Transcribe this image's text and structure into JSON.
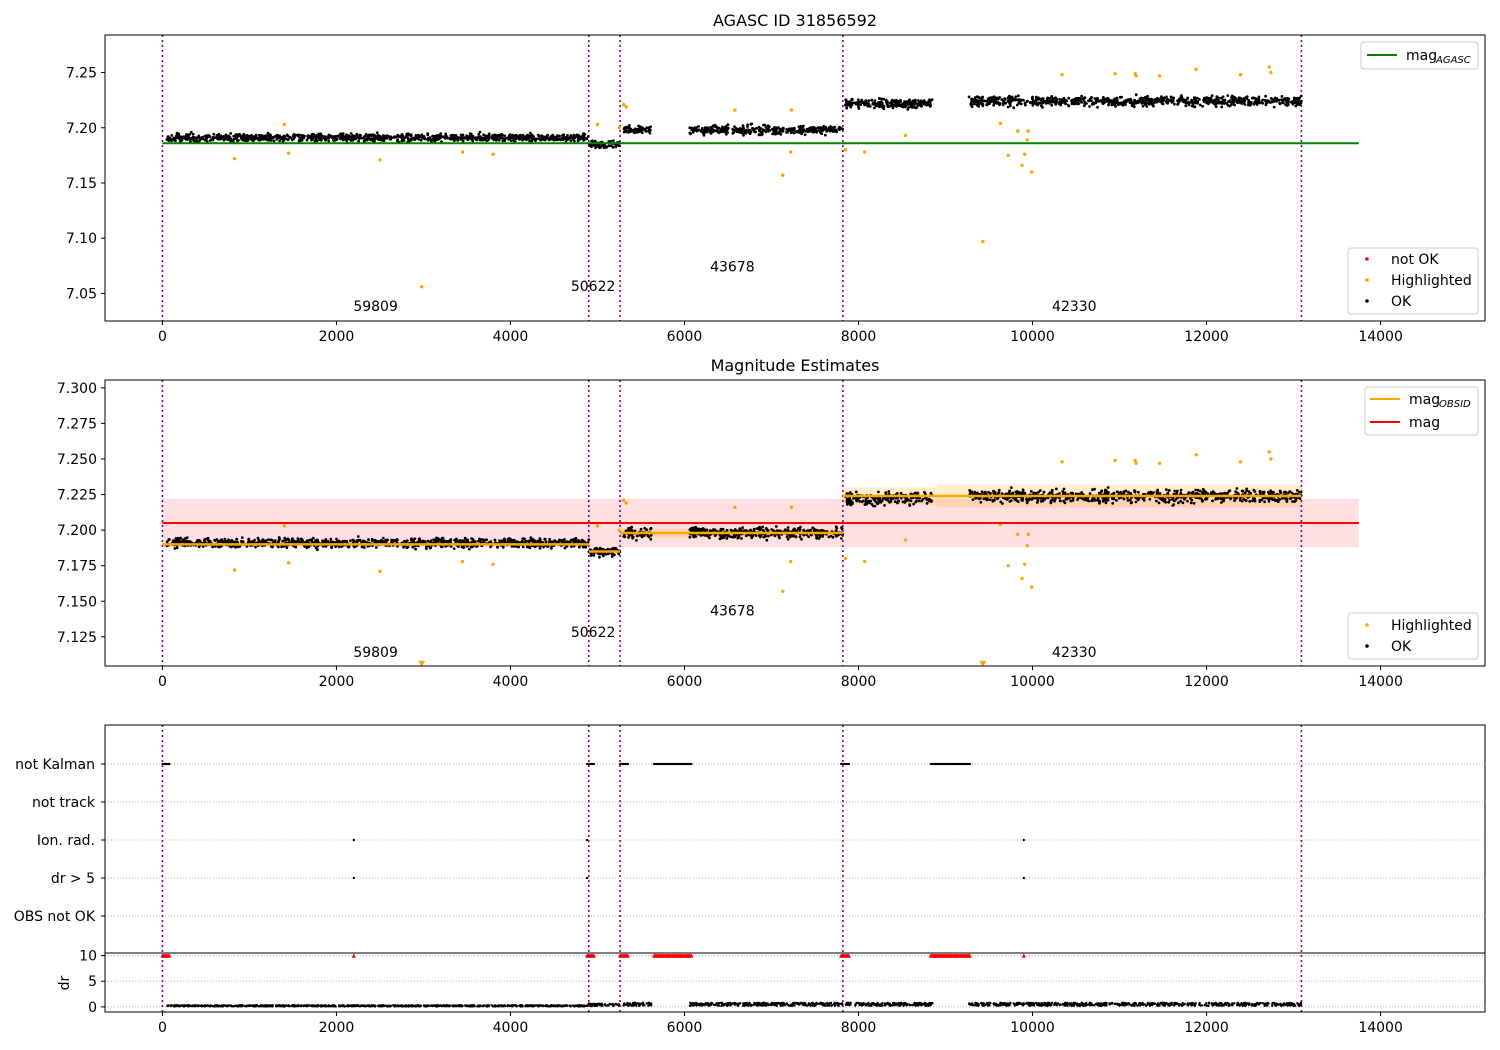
{
  "figure": {
    "panel1_title": "AGASC ID 31856592",
    "panel2_title": "Magnitude Estimates",
    "panel3_ylabel": "dr"
  },
  "colors": {
    "ok": "#000000",
    "highlighted": "#ffa500",
    "not_ok": "#ff0000",
    "mag_agasc": "#008000",
    "mag": "#ff0000",
    "mag_obsid": "#ffa500",
    "obs_boundary": "#800080",
    "band": "#ffc0c0",
    "grid": "#b0b0b0"
  },
  "legends": {
    "panel1_lines": [
      {
        "label": "mag",
        "sub": "AGASC",
        "color_key": "mag_agasc"
      }
    ],
    "panel1_markers": [
      {
        "label": "not OK",
        "color_key": "not_ok"
      },
      {
        "label": "Highlighted",
        "color_key": "highlighted"
      },
      {
        "label": "OK",
        "color_key": "ok"
      }
    ],
    "panel2_lines": [
      {
        "label": "mag",
        "sub": "OBSID",
        "color_key": "mag_obsid"
      },
      {
        "label": "mag",
        "sub": "",
        "color_key": "mag"
      }
    ],
    "panel2_markers": [
      {
        "label": "Highlighted",
        "color_key": "highlighted"
      },
      {
        "label": "OK",
        "color_key": "ok"
      }
    ]
  },
  "chart_data": [
    {
      "type": "scatter",
      "title": "AGASC ID 31856592",
      "xlim": [
        -660,
        15200
      ],
      "ylim": [
        7.025,
        7.284
      ],
      "xticks": [
        0,
        2000,
        4000,
        6000,
        8000,
        10000,
        12000,
        14000
      ],
      "yticks": [
        7.05,
        7.1,
        7.15,
        7.2,
        7.25
      ],
      "ytick_labels": [
        "7.05",
        "7.10",
        "7.15",
        "7.20",
        "7.25"
      ],
      "obs_boundaries": [
        0,
        4900,
        5260,
        7820,
        13090
      ],
      "observations": [
        {
          "obsid": "59809",
          "x_start": 50,
          "x_end": 4900,
          "mean": 7.191,
          "spread": 0.006,
          "label_x": 2450,
          "label_y": 7.034
        },
        {
          "obsid": "50622",
          "x_start": 4900,
          "x_end": 5260,
          "mean": 7.185,
          "spread": 0.006,
          "label_x": 4950,
          "label_y": 7.052
        },
        {
          "obsid": "",
          "x_start": 5300,
          "x_end": 5620,
          "mean": 7.198,
          "spread": 0.007
        },
        {
          "obsid": "43678",
          "x_start": 6060,
          "x_end": 7820,
          "mean": 7.198,
          "spread": 0.007,
          "label_x": 6550,
          "label_y": 7.07
        },
        {
          "obsid": "",
          "x_start": 7850,
          "x_end": 8850,
          "mean": 7.222,
          "spread": 0.008
        },
        {
          "obsid": "42330",
          "x_start": 9270,
          "x_end": 13090,
          "mean": 7.224,
          "spread": 0.008,
          "label_x": 10480,
          "label_y": 7.034
        }
      ],
      "highlighted_points": [
        [
          830,
          7.172
        ],
        [
          1400,
          7.203
        ],
        [
          1450,
          7.177
        ],
        [
          2500,
          7.171
        ],
        [
          2980,
          7.056
        ],
        [
          3450,
          7.178
        ],
        [
          3800,
          7.176
        ],
        [
          5000,
          7.203
        ],
        [
          5250,
          7.2
        ],
        [
          5300,
          7.221
        ],
        [
          5330,
          7.219
        ],
        [
          6580,
          7.216
        ],
        [
          7130,
          7.157
        ],
        [
          7220,
          7.178
        ],
        [
          7230,
          7.216
        ],
        [
          7850,
          7.18
        ],
        [
          8070,
          7.178
        ],
        [
          8540,
          7.193
        ],
        [
          9430,
          7.097
        ],
        [
          9630,
          7.204
        ],
        [
          9720,
          7.175
        ],
        [
          9830,
          7.197
        ],
        [
          9880,
          7.166
        ],
        [
          9910,
          7.176
        ],
        [
          9940,
          7.189
        ],
        [
          9950,
          7.197
        ],
        [
          9990,
          7.16
        ],
        [
          10340,
          7.248
        ],
        [
          10950,
          7.249
        ],
        [
          11180,
          7.249
        ],
        [
          11190,
          7.247
        ],
        [
          11460,
          7.247
        ],
        [
          11880,
          7.253
        ],
        [
          12390,
          7.248
        ],
        [
          12720,
          7.255
        ],
        [
          12740,
          7.25
        ]
      ],
      "reference_lines": [
        {
          "name": "mag_AGASC",
          "y": 7.186,
          "x_start": 0,
          "x_end": 13750,
          "color_key": "mag_agasc"
        }
      ],
      "legend_line_loc": "upper right",
      "legend_marker_loc": "lower right"
    },
    {
      "type": "scatter",
      "title": "Magnitude Estimates",
      "xlim": [
        -660,
        15200
      ],
      "ylim": [
        7.1045,
        7.3055
      ],
      "xticks": [
        0,
        2000,
        4000,
        6000,
        8000,
        10000,
        12000,
        14000
      ],
      "yticks": [
        7.125,
        7.15,
        7.175,
        7.2,
        7.225,
        7.25,
        7.275,
        7.3
      ],
      "ytick_labels": [
        "7.125",
        "7.150",
        "7.175",
        "7.200",
        "7.225",
        "7.250",
        "7.275",
        "7.300"
      ],
      "obs_boundaries": [
        0,
        4900,
        5260,
        7820,
        13090
      ],
      "obs_labels": [
        {
          "obsid": "59809",
          "label_x": 2450,
          "label_y": 7.111
        },
        {
          "obsid": "50622",
          "label_x": 4950,
          "label_y": 7.125
        },
        {
          "obsid": "43678",
          "label_x": 6550,
          "label_y": 7.14
        },
        {
          "obsid": "42330",
          "label_x": 10480,
          "label_y": 7.111
        }
      ],
      "mag_obsid_segments": [
        {
          "x_start": 0,
          "x_end": 4900,
          "mag": 7.19,
          "err": 0.001
        },
        {
          "x_start": 4900,
          "x_end": 5260,
          "mag": 7.185,
          "err": 0.001
        },
        {
          "x_start": 5260,
          "x_end": 7820,
          "mag": 7.198,
          "err": 0.003
        },
        {
          "x_start": 7820,
          "x_end": 8900,
          "mag": 7.224,
          "err": 0.006
        },
        {
          "x_start": 8900,
          "x_end": 13090,
          "mag": 7.224,
          "err": 0.008
        }
      ],
      "mag": {
        "value": 7.205,
        "err": 0.017,
        "x_start": 0,
        "x_end": 13750
      },
      "offscale_markers": [
        [
          2980,
          7.106
        ],
        [
          9430,
          7.106
        ]
      ],
      "legend_line_loc": "upper right",
      "legend_marker_loc": "lower right"
    },
    {
      "type": "scatter",
      "title": "",
      "xlim": [
        -660,
        15200
      ],
      "xticks": [
        0,
        2000,
        4000,
        6000,
        8000,
        10000,
        12000,
        14000
      ],
      "flag_rows": [
        "not Kalman",
        "not track",
        "Ion. rad.",
        "dr > 5",
        "OBS not OK"
      ],
      "flags": {
        "not Kalman": [
          [
            0,
            80
          ],
          [
            4880,
            4960
          ],
          [
            5260,
            5350
          ],
          [
            5650,
            6080
          ],
          [
            7800,
            7890
          ],
          [
            8830,
            9280
          ]
        ],
        "Ion. rad.": [
          [
            2200,
            2200
          ],
          [
            4880,
            4880
          ],
          [
            9900,
            9900
          ]
        ],
        "dr > 5": [
          [
            2200,
            2200
          ],
          [
            4880,
            4880
          ],
          [
            9900,
            9900
          ]
        ]
      },
      "obs_boundaries": [
        0,
        4900,
        5260,
        7820,
        13090
      ],
      "dr": {
        "ylabel": "dr",
        "yticks": [
          0,
          5,
          10
        ],
        "ylim": [
          -1,
          10.5
        ],
        "clipped_value": 10,
        "clipped_x_ranges": [
          [
            0,
            80
          ],
          [
            2200,
            2200
          ],
          [
            4880,
            4960
          ],
          [
            5260,
            5350
          ],
          [
            5650,
            6080
          ],
          [
            7800,
            7890
          ],
          [
            8830,
            9280
          ],
          [
            9900,
            9900
          ]
        ],
        "baseline_segments": [
          {
            "x_start": 50,
            "x_end": 4900,
            "level": 0.2
          },
          {
            "x_start": 4900,
            "x_end": 5250,
            "level": 0.4
          },
          {
            "x_start": 5300,
            "x_end": 5620,
            "level": 0.5
          },
          {
            "x_start": 6060,
            "x_end": 7820,
            "level": 0.5
          },
          {
            "x_start": 7850,
            "x_end": 8850,
            "level": 0.5
          },
          {
            "x_start": 9270,
            "x_end": 13090,
            "level": 0.5
          }
        ]
      }
    }
  ]
}
